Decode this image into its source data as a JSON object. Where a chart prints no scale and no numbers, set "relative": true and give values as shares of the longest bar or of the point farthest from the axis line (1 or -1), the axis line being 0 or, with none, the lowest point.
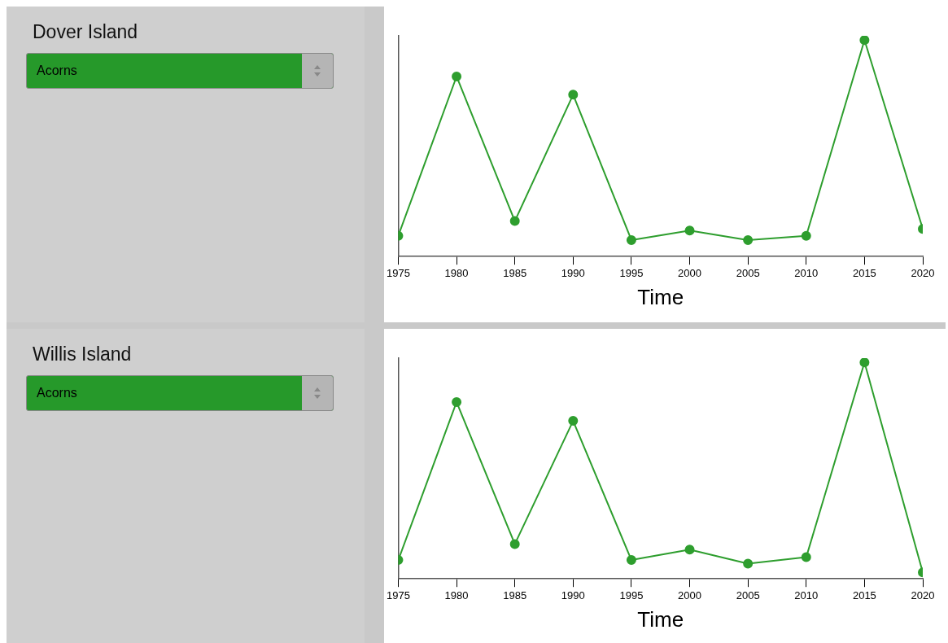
{
  "chart_data": [
    {
      "type": "other",
      "title": "Dover Island",
      "annotations": [
        "Acorns"
      ]
    },
    {
      "type": "line",
      "xlabel": "Time",
      "x": [
        1975,
        1980,
        1985,
        1990,
        1995,
        2000,
        2005,
        2010,
        2015,
        2020
      ],
      "relative": true,
      "color": "#2e9e2e",
      "values": [
        0.096,
        0.832,
        0.164,
        0.748,
        0.076,
        0.12,
        0.076,
        0.096,
        1,
        0.128
      ],
      "xlim": [
        1975,
        2020
      ],
      "xticks": [
        1975,
        1980,
        1985,
        1990,
        1995,
        2000,
        2005,
        2010,
        2015,
        2020
      ],
      "marker": "circle",
      "line_style": "solid"
    },
    {
      "type": "other",
      "title": "Willis Island",
      "annotations": [
        "Acorns"
      ]
    },
    {
      "type": "line",
      "xlabel": "Time",
      "x": [
        1975,
        1980,
        1985,
        1990,
        1995,
        2000,
        2005,
        2010,
        2015,
        2020
      ],
      "relative": true,
      "color": "#2e9e2e",
      "values": [
        0.087,
        0.817,
        0.161,
        0.73,
        0.087,
        0.135,
        0.07,
        0.1,
        1,
        0.03
      ],
      "xlim": [
        1975,
        2020
      ],
      "xticks": [
        1975,
        1980,
        1985,
        1990,
        1995,
        2000,
        2005,
        2010,
        2015,
        2020
      ],
      "marker": "circle",
      "line_style": "solid"
    }
  ]
}
